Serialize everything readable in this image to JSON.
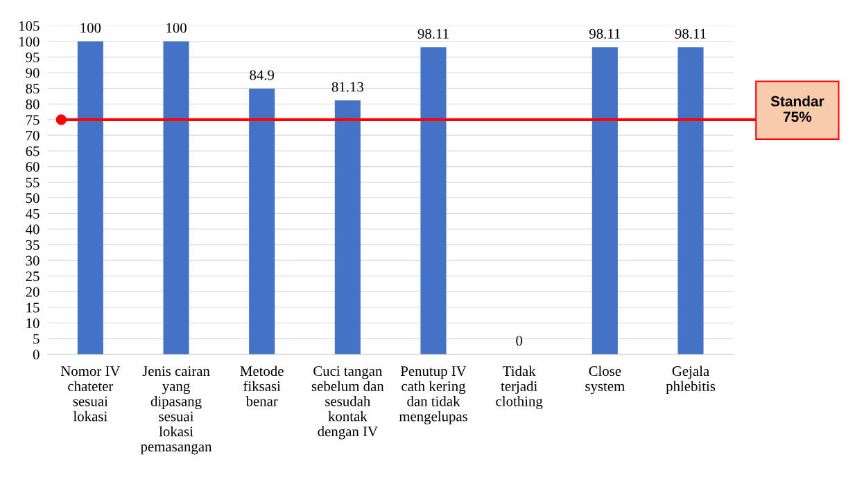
{
  "chart_data": {
    "type": "bar",
    "categories": [
      "Nomor IV\nchateter\nsesuai\nlokasi",
      "Jenis cairan\nyang\ndipasang\nsesuai\nlokasi\npemasangan",
      "Metode\nfiksasi\nbenar",
      "Cuci tangan\nsebelum dan\nsesudah\nkontak\ndengan IV",
      "Penutup IV\ncath kering\ndan tidak\nmengelupas",
      "Tidak\nterjadi\nclothing",
      "Close\nsystem",
      "Gejala\nphlebitis"
    ],
    "values": [
      100,
      100,
      84.9,
      81.13,
      98.11,
      0,
      98.11,
      98.11
    ],
    "color": "#4472c4",
    "ylim": [
      0,
      105
    ],
    "yticks": [
      0,
      5,
      10,
      15,
      20,
      25,
      30,
      35,
      40,
      45,
      50,
      55,
      60,
      65,
      70,
      75,
      80,
      85,
      90,
      95,
      100,
      105
    ],
    "grid": "y",
    "data_labels": true,
    "ref_lines": [
      {
        "axis": "y",
        "value": 75,
        "label": "Standar\n75%",
        "color": "#ff0000"
      }
    ]
  }
}
